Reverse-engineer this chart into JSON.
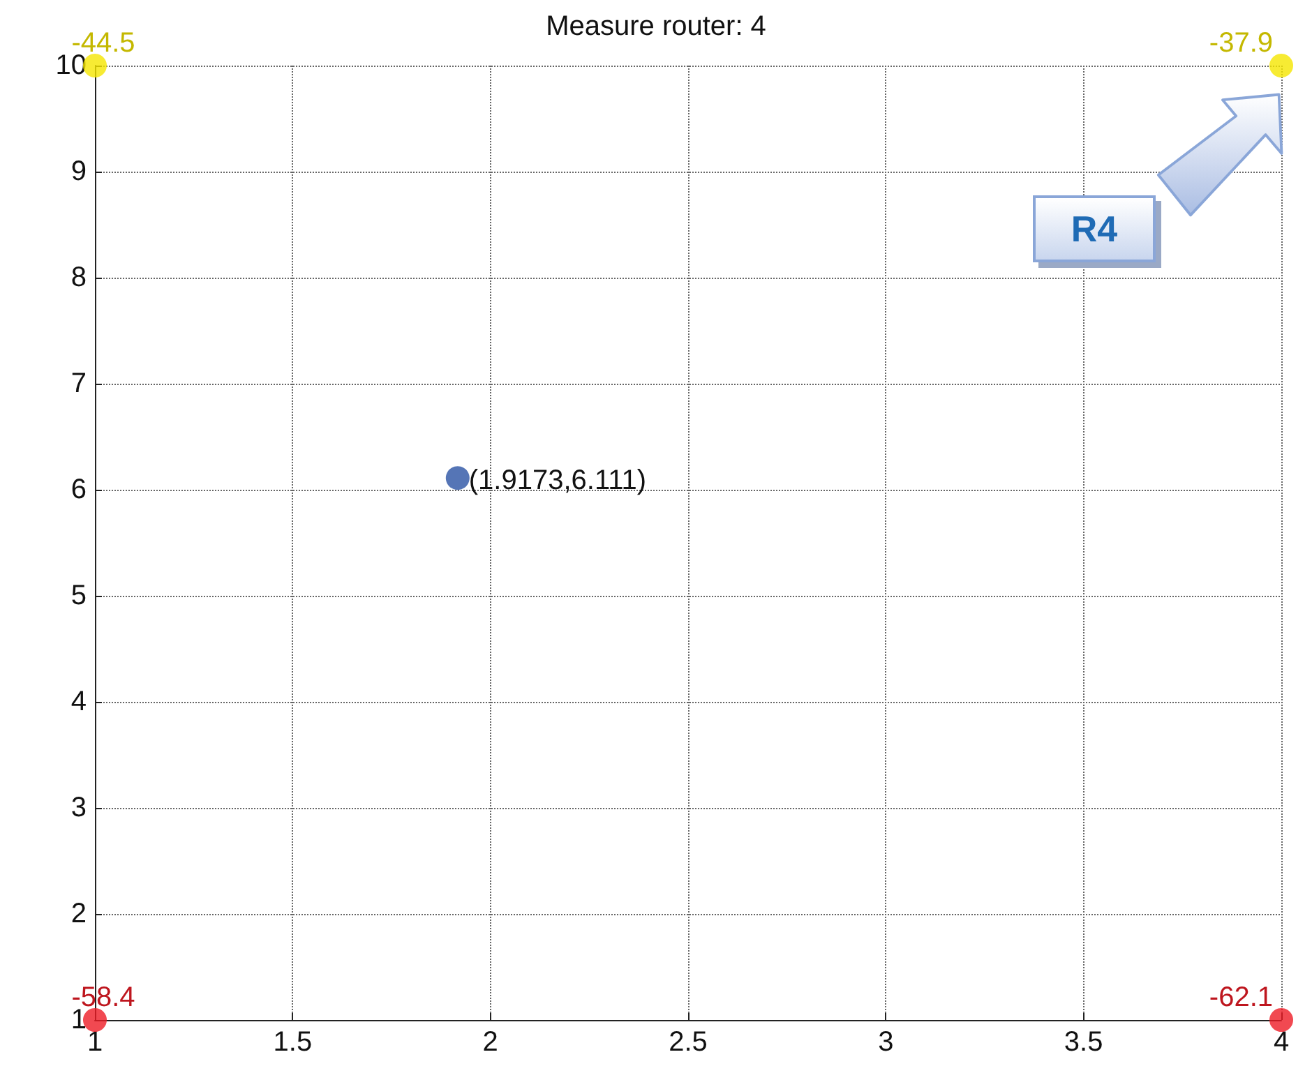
{
  "chart_data": {
    "type": "scatter",
    "title": "Measure router: 4",
    "xlim": [
      1,
      4
    ],
    "xticks": [
      1,
      1.5,
      2,
      2.5,
      3,
      3.5,
      4
    ],
    "ylim": [
      1,
      10
    ],
    "yticks": [
      1,
      2,
      3,
      4,
      5,
      6,
      7,
      8,
      9,
      10
    ],
    "grid": true,
    "marker": "circle",
    "series": [
      {
        "color": "#f5e600",
        "x": [
          1,
          4
        ],
        "values": [
          10,
          10
        ]
      },
      {
        "color": "#ee1c25",
        "x": [
          1,
          4
        ],
        "values": [
          1,
          1
        ]
      },
      {
        "color": "#2a52a4",
        "x": [
          1.9173
        ],
        "values": [
          6.111
        ]
      }
    ],
    "annotations": [
      "R4",
      {
        "text": "-44.5",
        "x": 1,
        "y": 10
      },
      {
        "text": "-37.9",
        "x": 4,
        "y": 10
      },
      {
        "text": "-58.4",
        "x": 1,
        "y": 1
      },
      {
        "text": "-62.1",
        "x": 4,
        "y": 1
      },
      {
        "text": "(1.9173,6.111)",
        "x": 1.9173,
        "y": 6.111
      }
    ]
  }
}
